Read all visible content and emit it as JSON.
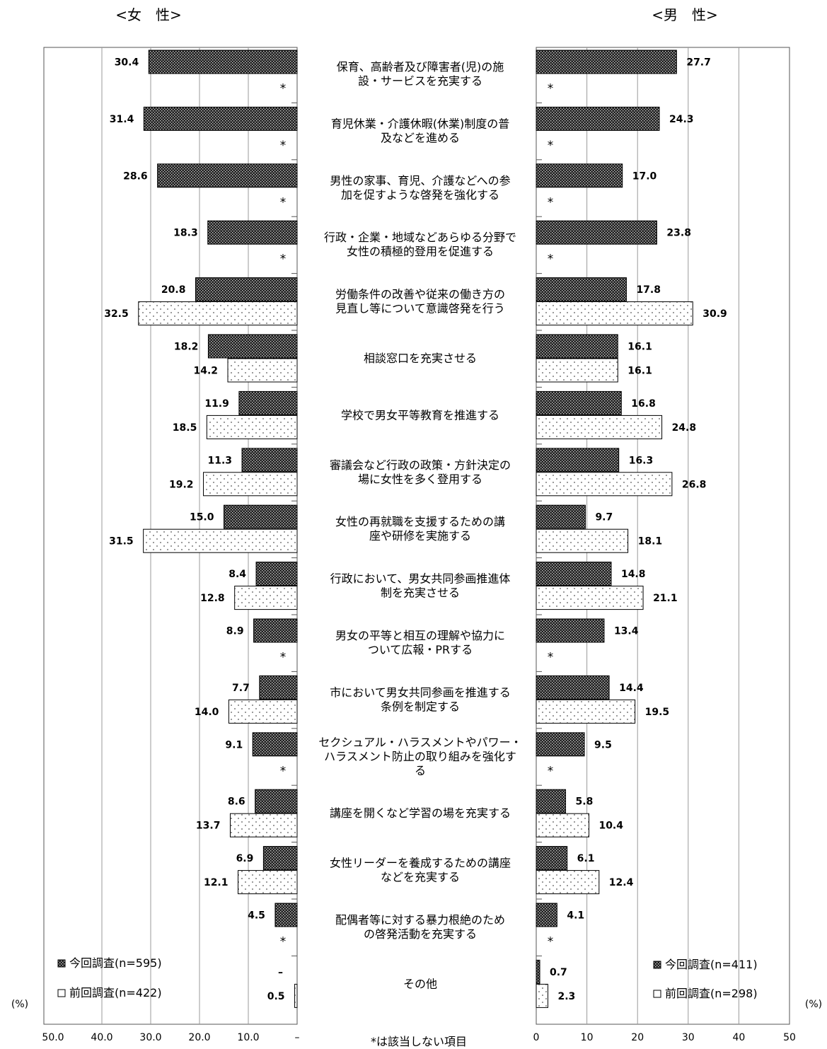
{
  "chart_data": {
    "type": "bar",
    "orientation": "horizontal",
    "note": "*は該当しない項目",
    "unit_label": "(%)",
    "categories": [
      [
        "保育、高齢者及び障害者(児)の施",
        "設・サービスを充実する"
      ],
      [
        "育児休業・介護休暇(休業)制度の普",
        "及などを進める"
      ],
      [
        "男性の家事、育児、介護などへの参",
        "加を促すような啓発を強化する"
      ],
      [
        "行政・企業・地域などあらゆる分野で",
        "女性の積極的登用を促進する"
      ],
      [
        "労働条件の改善や従来の働き方の",
        "見直し等について意識啓発を行う"
      ],
      [
        "相談窓口を充実させる"
      ],
      [
        "学校で男女平等教育を推進する"
      ],
      [
        "審議会など行政の政策・方針決定の",
        "場に女性を多く登用する"
      ],
      [
        "女性の再就職を支援するための講",
        "座や研修を実施する"
      ],
      [
        "行政において、男女共同参画推進体",
        "制を充実させる"
      ],
      [
        "男女の平等と相互の理解や協力に",
        "ついて広報・PRする"
      ],
      [
        "市において男女共同参画を推進する",
        "条例を制定する"
      ],
      [
        "セクシュアル・ハラスメントやパワー・",
        "ハラスメント防止の取り組みを強化す",
        "る"
      ],
      [
        "講座を開くなど学習の場を充実する"
      ],
      [
        "女性リーダーを養成するための講座",
        "などを充実する"
      ],
      [
        "配偶者等に対する暴力根絶のため",
        "の啓発活動を充実する"
      ],
      [
        "その他"
      ]
    ],
    "female": {
      "title": "<女　性>",
      "xlim": [
        0,
        50
      ],
      "ticks": [
        "50.0",
        "40.0",
        "30.0",
        "20.0",
        "10.0",
        "–"
      ],
      "tick_values": [
        50,
        40,
        30,
        20,
        10,
        0
      ],
      "series": [
        {
          "name": "今回調査(n=595)",
          "values": [
            30.4,
            31.4,
            28.6,
            18.3,
            20.8,
            18.2,
            11.9,
            11.3,
            15.0,
            8.4,
            8.9,
            7.7,
            9.1,
            8.6,
            6.9,
            4.5,
            null
          ],
          "labels": [
            "30.4",
            "31.4",
            "28.6",
            "18.3",
            "20.8",
            "18.2",
            "11.9",
            "11.3",
            "15.0",
            "8.4",
            "8.9",
            "7.7",
            "9.1",
            "8.6",
            "6.9",
            "4.5",
            "–"
          ]
        },
        {
          "name": "前回調査(n=422)",
          "values": [
            null,
            null,
            null,
            null,
            32.5,
            14.2,
            18.5,
            19.2,
            31.5,
            12.8,
            null,
            14.0,
            null,
            13.7,
            12.1,
            null,
            0.5
          ],
          "labels": [
            "*",
            "*",
            "*",
            "*",
            "32.5",
            "14.2",
            "18.5",
            "19.2",
            "31.5",
            "12.8",
            "*",
            "14.0",
            "*",
            "13.7",
            "12.1",
            "*",
            "0.5"
          ]
        }
      ]
    },
    "male": {
      "title": "<男　性>",
      "xlim": [
        0,
        50
      ],
      "ticks": [
        "0",
        "10",
        "20",
        "30",
        "40",
        "50"
      ],
      "tick_values": [
        0,
        10,
        20,
        30,
        40,
        50
      ],
      "series": [
        {
          "name": "今回調査(n=411)",
          "values": [
            27.7,
            24.3,
            17.0,
            23.8,
            17.8,
            16.1,
            16.8,
            16.3,
            9.7,
            14.8,
            13.4,
            14.4,
            9.5,
            5.8,
            6.1,
            4.1,
            0.7
          ],
          "labels": [
            "27.7",
            "24.3",
            "17.0",
            "23.8",
            "17.8",
            "16.1",
            "16.8",
            "16.3",
            "9.7",
            "14.8",
            "13.4",
            "14.4",
            "9.5",
            "5.8",
            "6.1",
            "4.1",
            "0.7"
          ]
        },
        {
          "name": "前回調査(n=298)",
          "values": [
            null,
            null,
            null,
            null,
            30.9,
            16.1,
            24.8,
            26.8,
            18.1,
            21.1,
            null,
            19.5,
            null,
            10.4,
            12.4,
            null,
            2.3
          ],
          "labels": [
            "*",
            "*",
            "*",
            "*",
            "30.9",
            "16.1",
            "24.8",
            "26.8",
            "18.1",
            "21.1",
            "*",
            "19.5",
            "*",
            "10.4",
            "12.4",
            "*",
            "2.3"
          ]
        }
      ]
    },
    "colors": {
      "current_fill": "#2b2b2b",
      "previous_fill": "#ffffff",
      "grid": "#9a9a9a",
      "frame": "#555555"
    },
    "grid": true
  }
}
